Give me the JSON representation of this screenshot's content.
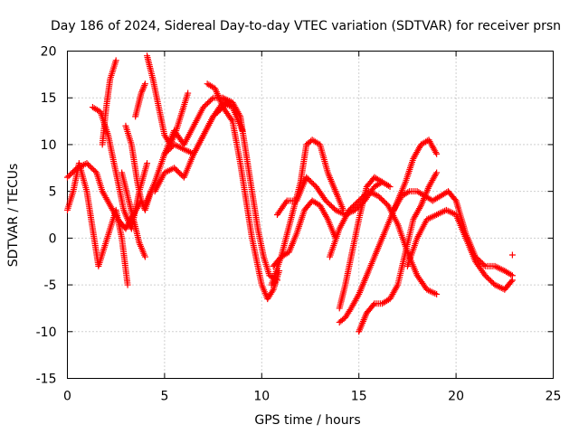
{
  "chart_data": {
    "type": "scatter",
    "title": "Day 186 of 2024, Sidereal Day-to-day VTEC variation (SDTVAR) for receiver prsn",
    "xlabel": "GPS time / hours",
    "ylabel": "SDTVAR / TECUs",
    "xlim": [
      0,
      25
    ],
    "ylim": [
      -15,
      20
    ],
    "xticks": [
      0,
      5,
      10,
      15,
      20,
      25
    ],
    "yticks": [
      -15,
      -10,
      -5,
      0,
      5,
      10,
      15,
      20
    ],
    "grid": true,
    "marker": "+",
    "color": "#ff0000",
    "series": [
      {
        "name": "track-1",
        "x": [
          0.0,
          0.3,
          0.6,
          1.0,
          1.3,
          1.6,
          1.9,
          2.2,
          2.5,
          2.8,
          3.1
        ],
        "y": [
          3.0,
          5.0,
          8.0,
          5.0,
          1.0,
          -3.0,
          -1.0,
          1.0,
          3.0,
          0.0,
          -5.0
        ]
      },
      {
        "name": "track-2",
        "x": [
          0.0,
          0.5,
          1.0,
          1.5,
          1.8,
          2.2,
          2.6,
          3.0,
          3.4,
          3.8
        ],
        "y": [
          6.5,
          7.5,
          8.0,
          7.0,
          5.0,
          3.5,
          2.0,
          1.0,
          2.5,
          4.0
        ]
      },
      {
        "name": "track-3",
        "x": [
          1.3,
          1.7,
          2.1,
          2.5,
          2.9,
          3.3,
          3.7,
          4.1
        ],
        "y": [
          14.0,
          13.5,
          11.0,
          7.0,
          3.0,
          1.0,
          5.0,
          8.0
        ]
      },
      {
        "name": "track-4",
        "x": [
          1.8,
          2.0,
          2.2,
          2.5
        ],
        "y": [
          10.0,
          14.0,
          17.0,
          19.0
        ]
      },
      {
        "name": "track-5",
        "x": [
          3.0,
          3.3,
          3.6,
          3.8,
          4.0,
          4.3
        ],
        "y": [
          12.0,
          10.0,
          6.0,
          4.0,
          3.0,
          5.0
        ]
      },
      {
        "name": "track-6",
        "x": [
          3.5,
          3.8,
          4.0
        ],
        "y": [
          13.0,
          15.5,
          16.5
        ]
      },
      {
        "name": "track-7",
        "x": [
          2.8,
          3.1,
          3.4,
          3.7,
          4.0
        ],
        "y": [
          7.0,
          4.5,
          2.0,
          -0.5,
          -2.0
        ]
      },
      {
        "name": "track-8",
        "x": [
          4.1,
          4.4,
          4.7,
          5.0,
          5.3,
          5.6,
          5.9,
          6.2
        ],
        "y": [
          19.5,
          17.0,
          14.0,
          11.0,
          10.0,
          11.5,
          13.5,
          15.5
        ]
      },
      {
        "name": "track-9",
        "x": [
          4.0,
          4.5,
          5.0,
          5.5,
          6.0,
          6.5,
          7.0,
          7.5,
          8.0,
          8.5,
          9.0
        ],
        "y": [
          3.5,
          6.0,
          9.0,
          11.5,
          10.0,
          12.0,
          14.0,
          15.0,
          15.0,
          14.0,
          11.5
        ]
      },
      {
        "name": "track-10",
        "x": [
          4.5,
          5.0,
          5.5,
          6.0,
          6.5,
          7.0,
          7.5,
          8.0,
          8.3
        ],
        "y": [
          5.0,
          7.0,
          7.5,
          6.5,
          9.0,
          11.0,
          13.0,
          14.0,
          14.5
        ]
      },
      {
        "name": "track-11",
        "x": [
          5.0,
          5.5,
          6.0,
          6.5,
          7.0,
          7.5,
          8.0,
          8.5
        ],
        "y": [
          9.0,
          10.0,
          9.5,
          9.0,
          11.0,
          13.0,
          14.5,
          14.0
        ]
      },
      {
        "name": "track-12",
        "x": [
          7.2,
          7.6,
          8.0,
          8.5,
          8.9,
          9.2,
          9.5,
          9.8,
          10.0,
          10.3,
          10.6,
          10.9
        ],
        "y": [
          16.5,
          16.0,
          14.0,
          12.5,
          8.0,
          4.0,
          0.0,
          -3.0,
          -5.0,
          -6.5,
          -5.5,
          -3.5
        ]
      },
      {
        "name": "track-13",
        "x": [
          8.0,
          8.5,
          8.9,
          9.2,
          9.5,
          9.8,
          10.1,
          10.4,
          10.8
        ],
        "y": [
          15.0,
          14.5,
          13.0,
          9.0,
          5.0,
          1.0,
          -2.0,
          -4.0,
          -4.5
        ]
      },
      {
        "name": "track-14",
        "x": [
          10.5,
          11.0,
          11.5,
          12.0,
          12.3,
          12.6,
          13.0,
          13.4,
          13.8,
          14.2
        ],
        "y": [
          -5.0,
          -2.0,
          2.0,
          6.0,
          10.0,
          10.5,
          10.0,
          7.0,
          5.0,
          3.0
        ]
      },
      {
        "name": "track-15",
        "x": [
          10.8,
          11.3,
          11.8,
          12.3,
          12.8,
          13.3,
          13.8,
          14.3,
          14.8,
          15.3,
          15.8,
          16.2
        ],
        "y": [
          2.5,
          4.0,
          4.0,
          6.5,
          5.5,
          4.0,
          3.0,
          2.5,
          3.0,
          4.0,
          5.5,
          6.0
        ]
      },
      {
        "name": "track-16",
        "x": [
          10.6,
          11.0,
          11.4,
          11.8,
          12.2,
          12.6,
          13.0,
          13.4,
          13.8
        ],
        "y": [
          -3.0,
          -2.0,
          -1.5,
          0.5,
          3.0,
          4.0,
          3.5,
          2.0,
          0.0
        ]
      },
      {
        "name": "track-17",
        "x": [
          14.0,
          14.3,
          14.6,
          15.0,
          15.4,
          15.8,
          16.2,
          16.6,
          17.0,
          17.4,
          17.8,
          18.2,
          18.6,
          19.0
        ],
        "y": [
          -9.0,
          -8.5,
          -7.5,
          -6.0,
          -4.0,
          -2.0,
          0.0,
          2.0,
          4.0,
          6.0,
          8.5,
          10.0,
          10.5,
          9.0
        ]
      },
      {
        "name": "track-18",
        "x": [
          15.0,
          15.4,
          15.8,
          16.2,
          16.6,
          17.0,
          17.4,
          17.8,
          18.2,
          18.6,
          19.0
        ],
        "y": [
          -10.0,
          -8.0,
          -7.0,
          -7.0,
          -6.5,
          -5.0,
          -1.5,
          2.0,
          3.5,
          5.5,
          7.0
        ]
      },
      {
        "name": "track-19",
        "x": [
          13.5,
          14.0,
          14.5,
          15.0,
          15.5,
          16.0,
          16.5,
          17.0,
          17.5,
          18.0,
          18.5,
          19.0
        ],
        "y": [
          -2.0,
          1.0,
          3.0,
          4.0,
          5.0,
          4.5,
          3.5,
          1.5,
          -1.5,
          -4.0,
          -5.5,
          -6.0
        ]
      },
      {
        "name": "track-20",
        "x": [
          14.0,
          14.3,
          14.6,
          15.0,
          15.4,
          15.8,
          16.2,
          16.6
        ],
        "y": [
          -7.5,
          -5.0,
          -2.0,
          2.0,
          5.5,
          6.5,
          6.0,
          5.5
        ]
      },
      {
        "name": "track-21",
        "x": [
          16.8,
          17.2,
          17.6,
          18.0,
          18.4,
          18.8,
          19.2,
          19.6,
          20.0,
          20.5,
          21.0,
          21.5,
          22.0,
          22.5,
          22.9
        ],
        "y": [
          3.0,
          4.5,
          5.0,
          5.0,
          4.5,
          4.0,
          4.5,
          5.0,
          4.0,
          0.5,
          -2.0,
          -3.0,
          -3.0,
          -3.5,
          -4.0
        ]
      },
      {
        "name": "track-22",
        "x": [
          17.5,
          18.0,
          18.5,
          19.0,
          19.5,
          20.0,
          20.5,
          21.0,
          21.5,
          22.0,
          22.5,
          22.9
        ],
        "y": [
          -3.0,
          0.0,
          2.0,
          2.5,
          3.0,
          2.5,
          0.0,
          -2.5,
          -4.0,
          -5.0,
          -5.5,
          -4.5
        ]
      },
      {
        "name": "track-23",
        "x": [
          22.9
        ],
        "y": [
          -1.8
        ]
      }
    ]
  }
}
